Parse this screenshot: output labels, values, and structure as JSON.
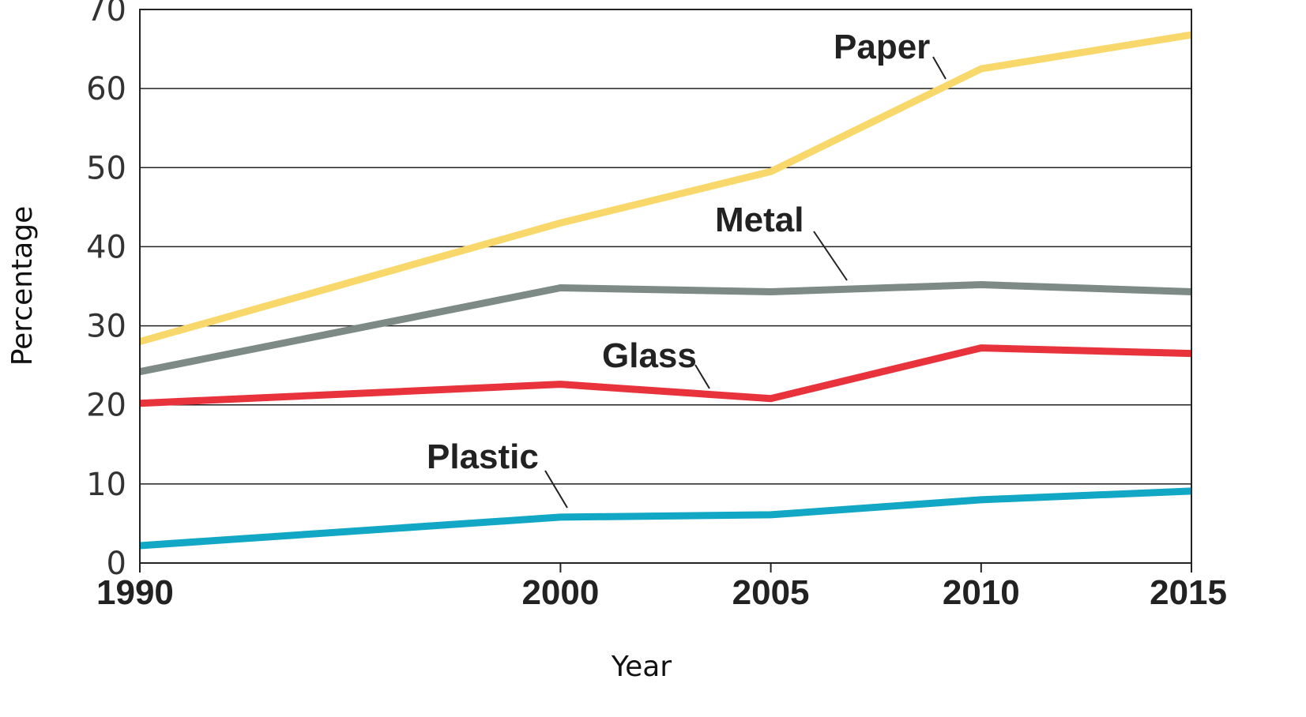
{
  "chart_data": {
    "type": "line",
    "xlabel": "Year",
    "ylabel": "Percentage",
    "x": [
      1990,
      2000,
      2005,
      2010,
      2015
    ],
    "x_tick_labels": [
      "1990",
      "2000",
      "2005",
      "2010",
      "2015"
    ],
    "ylim": [
      0,
      70
    ],
    "y_ticks": [
      0,
      10,
      20,
      30,
      40,
      50,
      60,
      70
    ],
    "y_tick_labels": [
      "0",
      "10",
      "20",
      "30",
      "40",
      "50",
      "60",
      "70"
    ],
    "grid": true,
    "legend": "direct labels with leader lines",
    "series": [
      {
        "name": "Paper",
        "color": "#f8d86a",
        "values": [
          28,
          43,
          49.5,
          62.5,
          66.8
        ]
      },
      {
        "name": "Metal",
        "color": "#7e8a86",
        "values": [
          24.2,
          34.8,
          34.3,
          35.2,
          34.3
        ]
      },
      {
        "name": "Glass",
        "color": "#e8333c",
        "values": [
          20.2,
          22.6,
          20.8,
          27.2,
          26.5
        ]
      },
      {
        "name": "Plastic",
        "color": "#12a8c5",
        "values": [
          2.2,
          5.8,
          6.1,
          8.0,
          9.1
        ]
      }
    ]
  }
}
